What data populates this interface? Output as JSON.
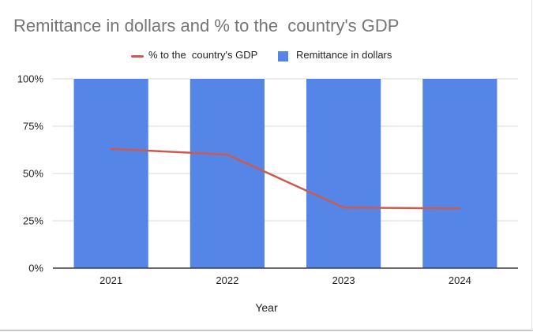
{
  "chart_data": {
    "type": "bar",
    "title": "Remittance in dollars and % to the  country's GDP",
    "xlabel": "Year",
    "ylabel": "",
    "categories": [
      "2021",
      "2022",
      "2023",
      "2024"
    ],
    "ylim": [
      0,
      100
    ],
    "yticks": [
      "0%",
      "25%",
      "50%",
      "75%",
      "100%"
    ],
    "grid": true,
    "legend_position": "top",
    "series": [
      {
        "name": "% to the  country's GDP",
        "kind": "line",
        "color": "#cc5b4f",
        "values": [
          63,
          60,
          32,
          31.5
        ]
      },
      {
        "name": "Remittance in dollars",
        "kind": "bar",
        "color": "#5685e8",
        "values": [
          100,
          100,
          100,
          100
        ]
      }
    ]
  }
}
